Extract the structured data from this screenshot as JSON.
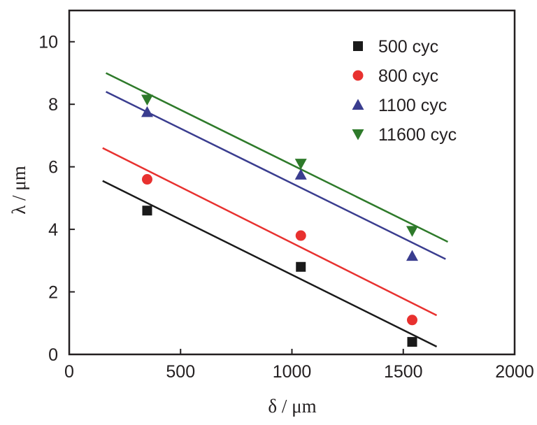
{
  "chart_data": {
    "type": "scatter",
    "xlabel": "δ / μm",
    "ylabel": "λ / μm",
    "xlim": [
      0,
      2000
    ],
    "ylim": [
      0,
      11
    ],
    "xticks": [
      0,
      500,
      1000,
      1500,
      2000
    ],
    "yticks": [
      0,
      2,
      4,
      6,
      8,
      10
    ],
    "xtick_labels": [
      "0",
      "500",
      "1000",
      "1500",
      "2000"
    ],
    "ytick_labels": [
      "0",
      "2",
      "4",
      "6",
      "8",
      "10"
    ],
    "grid": false,
    "legend_position": "top-right",
    "series": [
      {
        "name": "500 cyc",
        "marker": "square",
        "color": "#1a1a1a",
        "points": [
          [
            350,
            4.6
          ],
          [
            1040,
            2.8
          ],
          [
            1540,
            0.4
          ]
        ],
        "fit": [
          [
            150,
            5.55
          ],
          [
            1650,
            0.25
          ]
        ]
      },
      {
        "name": "800 cyc",
        "marker": "circle",
        "color": "#e8312f",
        "points": [
          [
            350,
            5.6
          ],
          [
            1040,
            3.8
          ],
          [
            1540,
            1.1
          ]
        ],
        "fit": [
          [
            150,
            6.6
          ],
          [
            1650,
            1.25
          ]
        ]
      },
      {
        "name": "1100 cyc",
        "marker": "triangle-up",
        "color": "#3a3d8f",
        "points": [
          [
            350,
            7.75
          ],
          [
            1040,
            5.75
          ],
          [
            1540,
            3.15
          ]
        ],
        "fit": [
          [
            165,
            8.4
          ],
          [
            1690,
            3.05
          ]
        ]
      },
      {
        "name": "11600 cyc",
        "marker": "triangle-down",
        "color": "#2e7a2a",
        "points": [
          [
            350,
            8.15
          ],
          [
            1040,
            6.1
          ],
          [
            1540,
            3.95
          ]
        ],
        "fit": [
          [
            165,
            9.0
          ],
          [
            1700,
            3.6
          ]
        ]
      }
    ]
  }
}
